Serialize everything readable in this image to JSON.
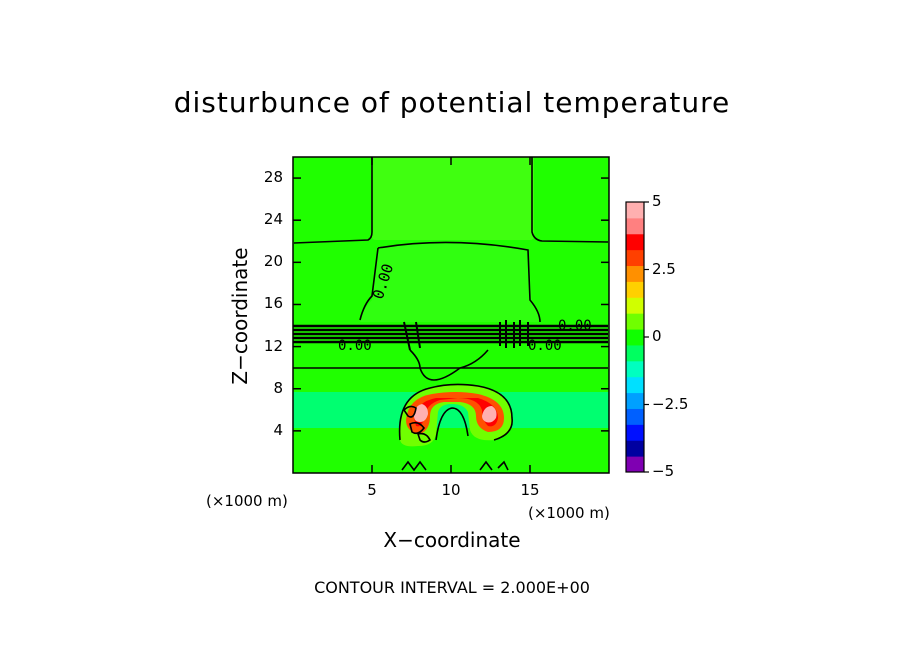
{
  "chart_data": {
    "type": "heatmap",
    "title": "disturbunce of potential temperature",
    "xlabel": "X−coordinate",
    "ylabel": "Z−coordinate",
    "x_unit": "(×1000 m)",
    "y_unit": "(×1000 m)",
    "xlim": [
      0,
      20
    ],
    "ylim": [
      0,
      30
    ],
    "x_ticks": [
      5,
      10,
      15
    ],
    "y_ticks": [
      4,
      8,
      12,
      16,
      20,
      24,
      28
    ],
    "contour_interval_text": "CONTOUR INTERVAL = 2.000E+00",
    "contour_label": "0.00",
    "colorbar": {
      "min": -5,
      "max": 5,
      "tick_values": [
        5,
        2.5,
        0,
        -2.5,
        -5
      ],
      "tick_labels": [
        "5",
        "2.5",
        "0",
        "−2.5",
        "−5"
      ],
      "colors": [
        "#7f00b2",
        "#0000a0",
        "#0010ff",
        "#0060ff",
        "#00a0ff",
        "#00e0ff",
        "#00ffc0",
        "#00ff60",
        "#10ff00",
        "#70ff00",
        "#d0ff00",
        "#ffd000",
        "#ff9000",
        "#ff4000",
        "#ff0000",
        "#ff8080",
        "#ffb0b0"
      ]
    }
  }
}
